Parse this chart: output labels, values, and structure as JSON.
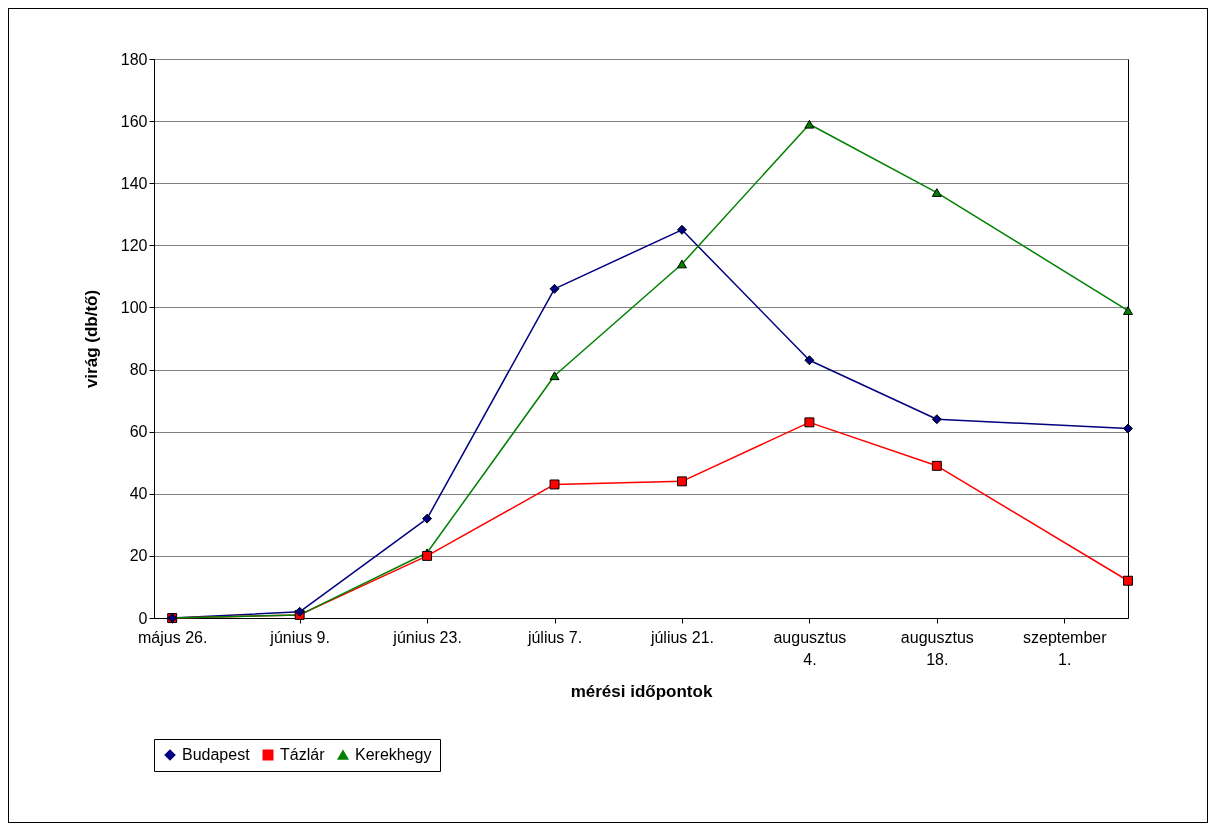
{
  "chart_data": {
    "type": "line",
    "xlabel": "mérési időpontok",
    "ylabel": "virág (db/tő)",
    "x": [
      "--05-26",
      "--06-09",
      "--06-23",
      "--07-07",
      "--07-21",
      "--08-04",
      "--08-18",
      "--09-08"
    ],
    "xlim": [
      "--05-24",
      "--09-08"
    ],
    "xticks": [
      {
        "value": "--05-26",
        "label": "május 26."
      },
      {
        "value": "--06-09",
        "label": "június 9."
      },
      {
        "value": "--06-23",
        "label": "június 23."
      },
      {
        "value": "--07-07",
        "label": "július 7."
      },
      {
        "value": "--07-21",
        "label": "július 21."
      },
      {
        "value": "--08-04",
        "label": "augusztus 4."
      },
      {
        "value": "--08-18",
        "label": "augusztus 18."
      },
      {
        "value": "--09-01",
        "label": "szeptember 1."
      }
    ],
    "ylim": [
      0,
      180
    ],
    "yticks": [
      0,
      20,
      40,
      60,
      80,
      100,
      120,
      140,
      160,
      180
    ],
    "grid": "y",
    "legend": "bottom",
    "series": [
      {
        "name": "Budapest",
        "color": "#000080",
        "marker": "diamond",
        "values": [
          0,
          2,
          32,
          106,
          125,
          83,
          64,
          61
        ]
      },
      {
        "name": "Tázlár",
        "color": "#ff0000",
        "marker": "square",
        "values": [
          0,
          1,
          20,
          43,
          44,
          63,
          49,
          12
        ]
      },
      {
        "name": "Kerekhegy",
        "color": "#008000",
        "marker": "triangle",
        "values": [
          0,
          1,
          21,
          78,
          114,
          159,
          137,
          99
        ]
      }
    ]
  }
}
